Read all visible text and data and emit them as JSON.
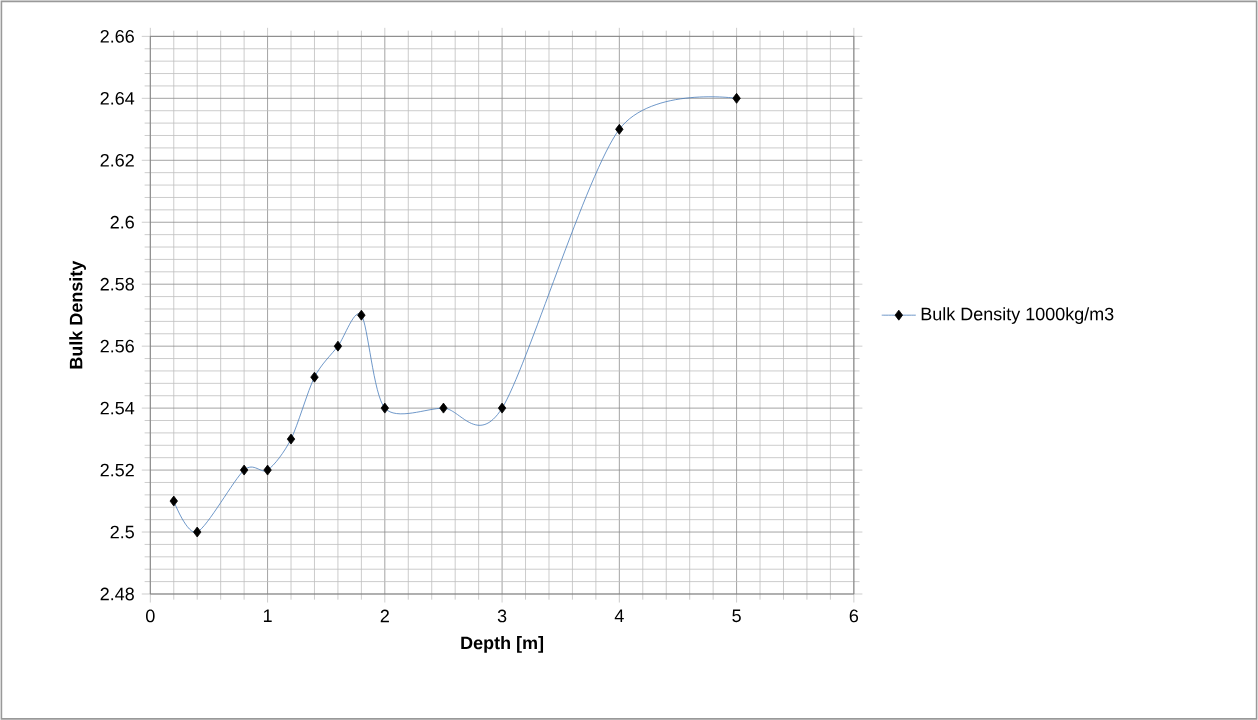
{
  "chart_data": {
    "type": "line",
    "xlabel": "Depth [m]",
    "ylabel": "Bulk Density",
    "x": [
      0.2,
      0.4,
      0.8,
      1.0,
      1.2,
      1.4,
      1.6,
      1.8,
      2.0,
      2.5,
      3.0,
      4.0,
      5.0
    ],
    "series": [
      {
        "name": "Bulk Density 1000kg/m3",
        "color": "#4a7ebb",
        "values": [
          2.51,
          2.5,
          2.52,
          2.52,
          2.53,
          2.55,
          2.56,
          2.57,
          2.54,
          2.54,
          2.54,
          2.63,
          2.64
        ]
      }
    ],
    "xlim": [
      0,
      6
    ],
    "ylim": [
      2.48,
      2.66
    ],
    "xticks": [
      0,
      1,
      2,
      3,
      4,
      5,
      6
    ],
    "yticks": [
      2.48,
      2.5,
      2.52,
      2.54,
      2.56,
      2.58,
      2.6,
      2.62,
      2.64,
      2.66
    ],
    "grid": true,
    "legend": "right",
    "marker": "diamond",
    "line_style": "solid"
  }
}
